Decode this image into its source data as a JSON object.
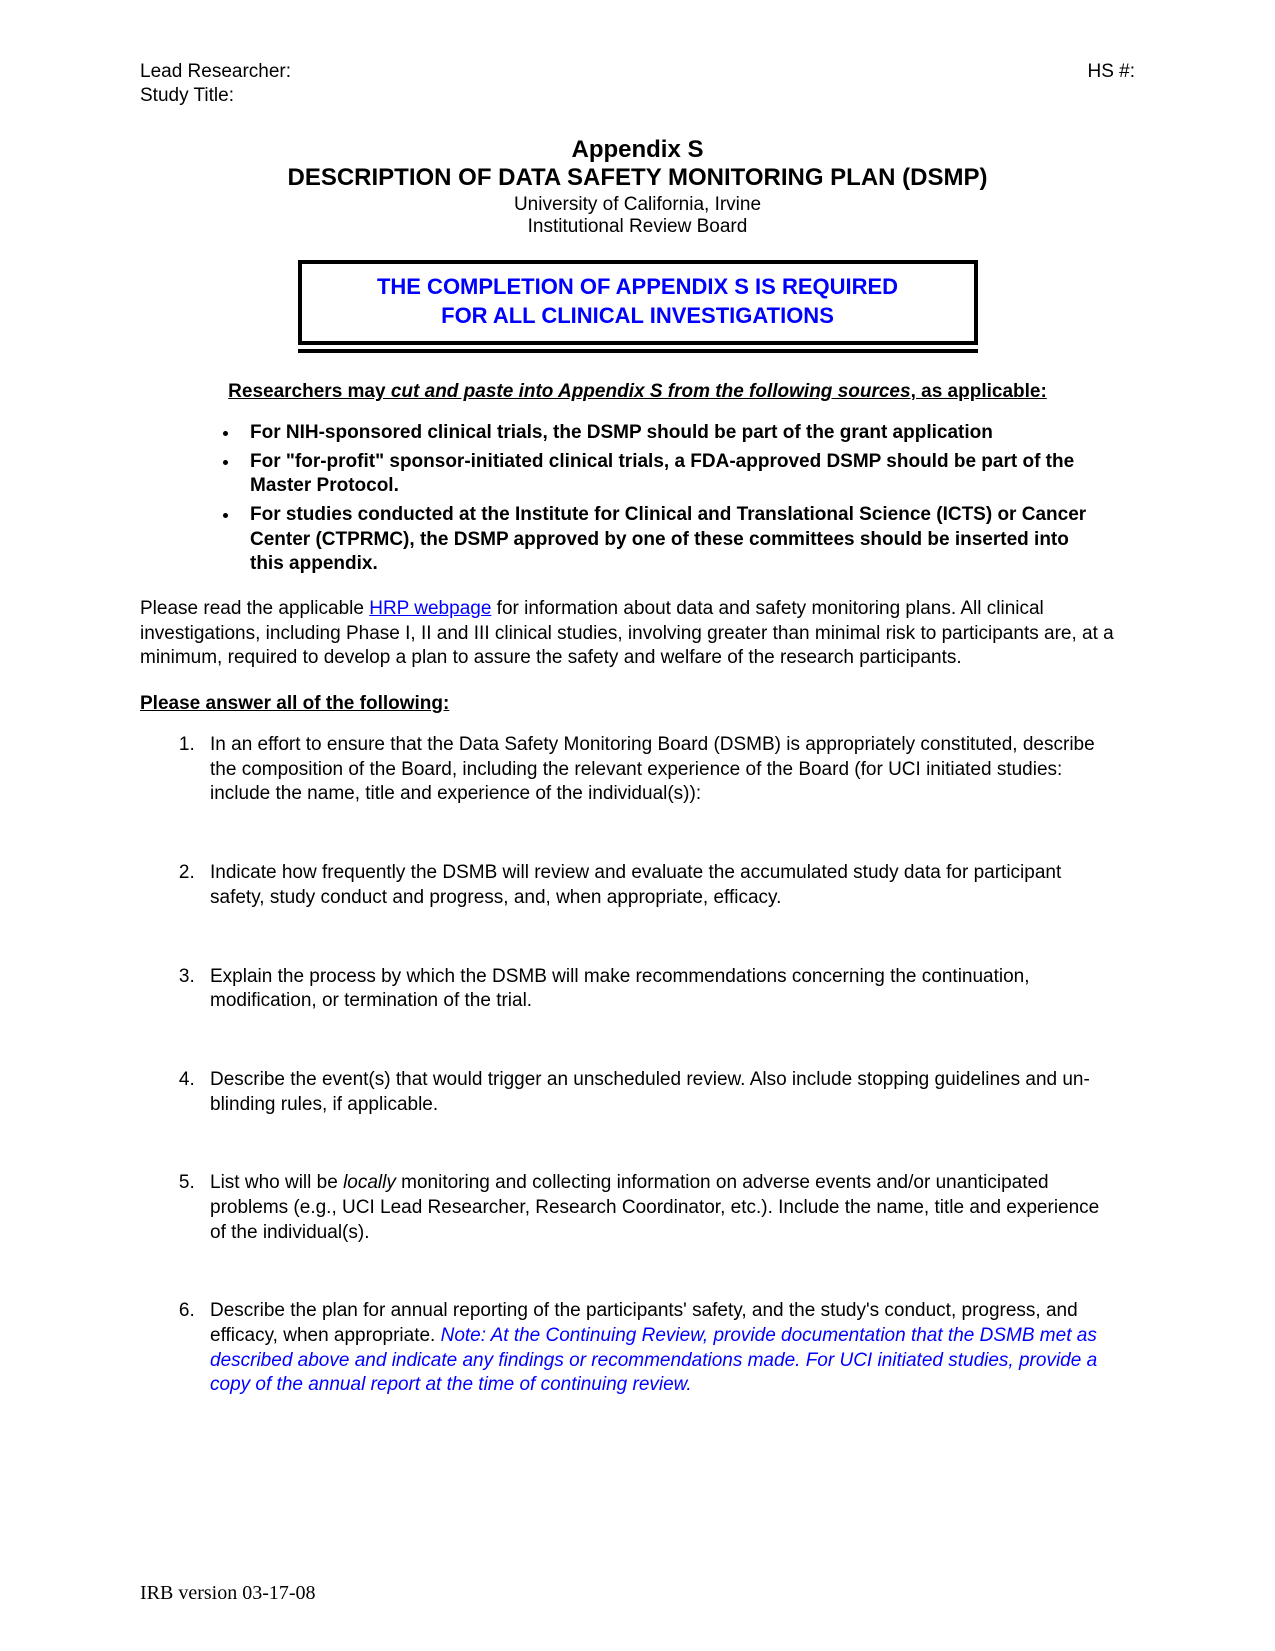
{
  "colors": {
    "text": "#000000",
    "link": "#0000ff",
    "callout_text": "#0000ff",
    "callout_border": "#000000",
    "background": "#ffffff"
  },
  "fonts": {
    "body_family": "Arial",
    "body_size_pt": 14,
    "title_size_pt": 18,
    "footer_family": "Times New Roman"
  },
  "header": {
    "left_line1": "Lead Researcher:",
    "left_line2": "Study Title:",
    "right_line1": "HS #:"
  },
  "title": {
    "line1": "Appendix S",
    "line2": "DESCRIPTION OF DATA SAFETY MONITORING PLAN (DSMP)",
    "line3": "University of California, Irvine",
    "line4": "Institutional Review Board"
  },
  "callout": {
    "line1": "THE COMPLETION OF APPENDIX S IS REQUIRED",
    "line2": "FOR ALL CLINICAL INVESTIGATIONS"
  },
  "sources_line": {
    "lead": "Researchers may ",
    "italic": "cut and paste into Appendix S from the following sources",
    "tail": ", as applicable:"
  },
  "bullets": [
    "For NIH-sponsored clinical trials, the DSMP should be part of the grant application",
    "For \"for-profit\" sponsor-initiated clinical trials, a FDA-approved DSMP should be part of the Master Protocol.",
    "For studies conducted at the Institute for Clinical and Translational Science (ICTS) or Cancer Center (CTPRMC), the DSMP approved by one of these committees should be inserted into this appendix."
  ],
  "para": {
    "pre": "Please read the applicable ",
    "link": "HRP webpage",
    "post": " for information about data and safety monitoring plans.  All clinical investigations, including Phase I, II and III clinical studies, involving greater than minimal risk to participants are, at a minimum, required to develop a plan to assure the safety and welfare of the research participants."
  },
  "answer_line": "Please answer all of the following:",
  "questions": {
    "q1": "In an effort to ensure that the Data Safety Monitoring Board (DSMB) is appropriately constituted, describe the composition of the Board, including the relevant experience of the Board (for UCI initiated studies: include the name, title and experience of the individual(s)):",
    "q2": " Indicate how frequently the DSMB will review and evaluate the accumulated study data for participant safety, study conduct and progress, and, when appropriate, efficacy.",
    "q3": "Explain the process by which the DSMB will make recommendations concerning the continuation, modification, or termination of the trial.",
    "q4": "Describe the event(s) that would trigger an unscheduled review. Also include stopping guidelines and un-blinding rules, if applicable.",
    "q5_pre": "List who will be ",
    "q5_italic": "locally",
    "q5_post": " monitoring and collecting information on adverse events and/or unanticipated problems (e.g., UCI Lead Researcher, Research Coordinator, etc.). Include the name, title and experience of the individual(s).",
    "q6_pre": "Describe the plan for annual reporting of the participants' safety, and the study's conduct, progress, and efficacy, when appropriate. ",
    "q6_note": "Note: At the Continuing Review, provide documentation that the DSMB met as described above and indicate any findings or recommendations made.  For UCI initiated studies, provide a copy of the annual report at the time of continuing review."
  },
  "footer": "IRB version 03-17-08"
}
